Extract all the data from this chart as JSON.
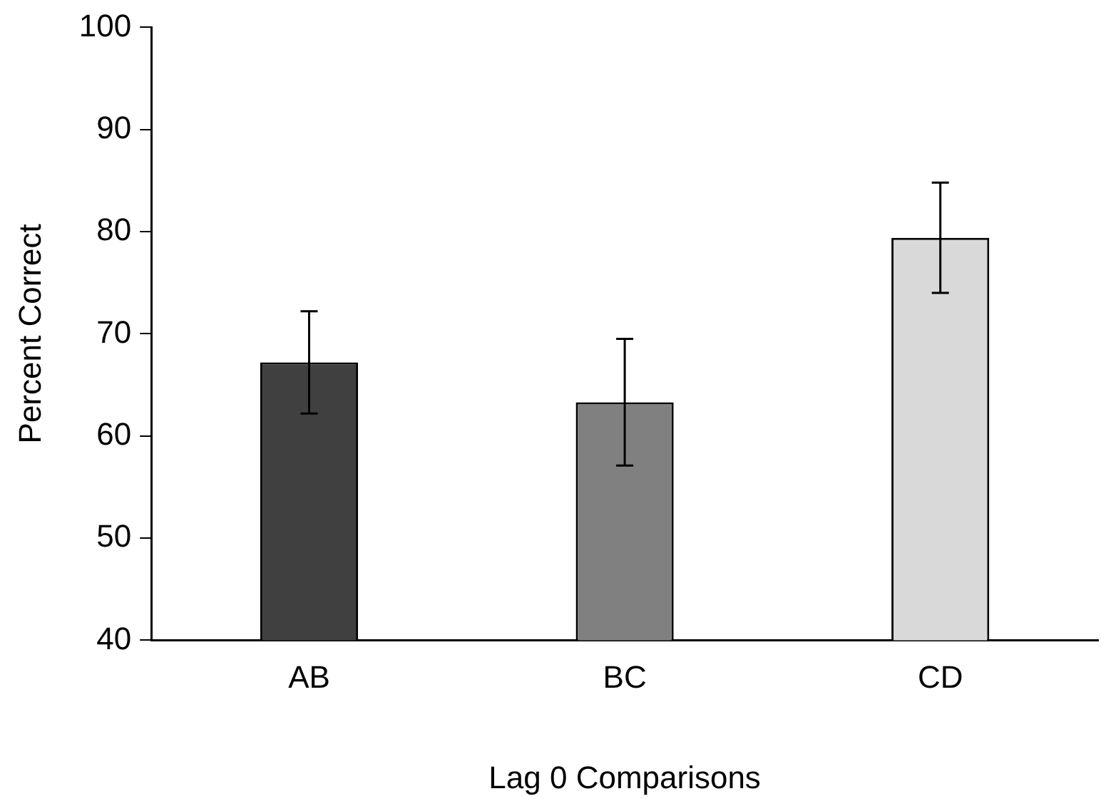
{
  "chart_data": {
    "type": "bar",
    "xlabel": "Lag 0 Comparisons",
    "ylabel": "Percent Correct",
    "categories": [
      "AB",
      "BC",
      "CD"
    ],
    "values": [
      67.2,
      63.3,
      79.4
    ],
    "errors": [
      5,
      6.2,
      5.4
    ],
    "colors": [
      "#404040",
      "#808080",
      "#d9d9d9"
    ],
    "ylim": [
      40,
      100
    ],
    "yticks": [
      40,
      50,
      60,
      70,
      80,
      90,
      100
    ],
    "grid": false,
    "legend": false
  }
}
